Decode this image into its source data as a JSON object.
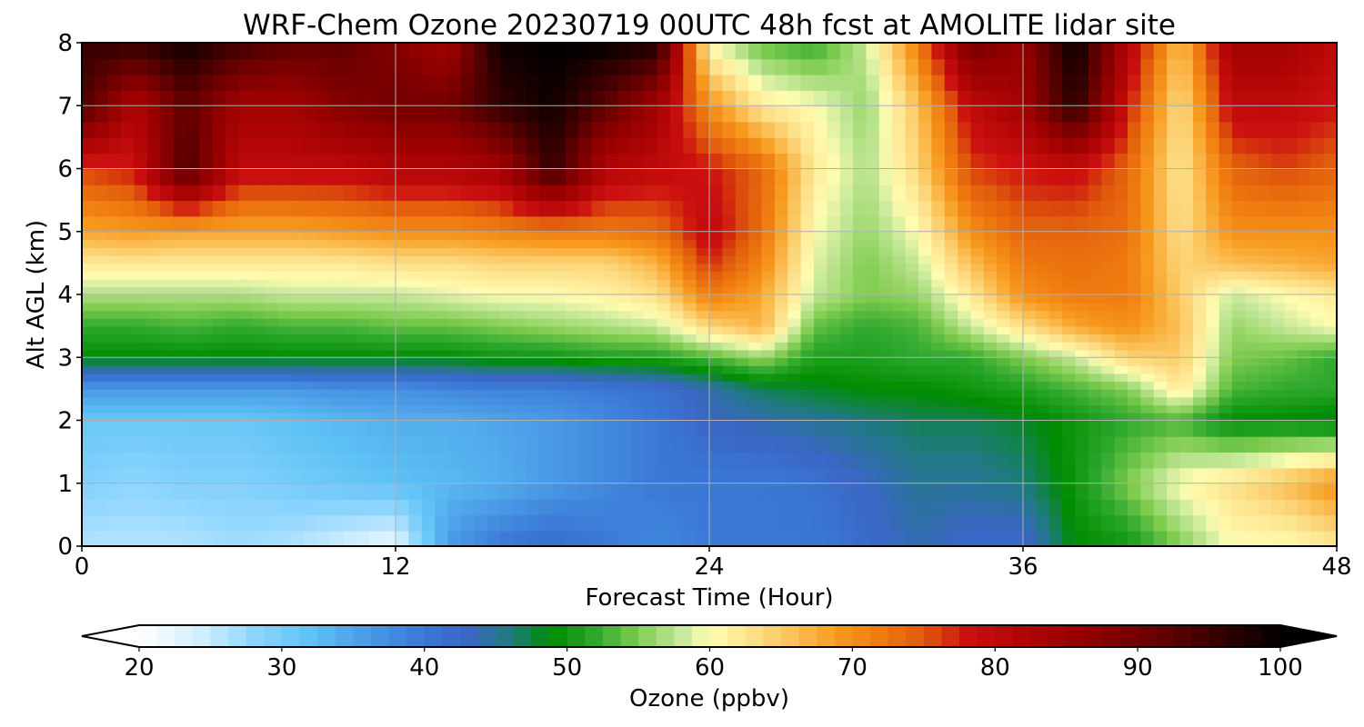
{
  "chart_data": {
    "type": "heatmap",
    "title": "WRF-Chem Ozone  20230719 00UTC 48h fcst at AMOLITE lidar site",
    "xlabel": "Forecast Time (Hour)",
    "ylabel": "Alt AGL (km)",
    "xlim": [
      0,
      48
    ],
    "ylim": [
      0,
      8
    ],
    "x_ticks": [
      0,
      12,
      24,
      36,
      48
    ],
    "y_ticks": [
      0,
      1,
      2,
      3,
      4,
      5,
      6,
      7,
      8
    ],
    "grid": true,
    "colorbar": {
      "label": "Ozone  (ppbv)",
      "min": 20,
      "max": 100,
      "ticks": [
        20,
        30,
        40,
        50,
        60,
        70,
        80,
        90,
        100
      ],
      "extend": "both",
      "colors": [
        {
          "v": 20,
          "c": "#ffffff"
        },
        {
          "v": 24,
          "c": "#d6f0ff"
        },
        {
          "v": 28,
          "c": "#8fd6ff"
        },
        {
          "v": 32,
          "c": "#5ec2f5"
        },
        {
          "v": 36,
          "c": "#4a9ae6"
        },
        {
          "v": 40,
          "c": "#3a78d6"
        },
        {
          "v": 43,
          "c": "#3a66c4"
        },
        {
          "v": 46,
          "c": "#1f7a80"
        },
        {
          "v": 49,
          "c": "#008c00"
        },
        {
          "v": 52,
          "c": "#2ea82e"
        },
        {
          "v": 55,
          "c": "#7fcc4f"
        },
        {
          "v": 58,
          "c": "#c6e89a"
        },
        {
          "v": 60,
          "c": "#fffcb0"
        },
        {
          "v": 63,
          "c": "#fde08a"
        },
        {
          "v": 66,
          "c": "#fbbf55"
        },
        {
          "v": 69,
          "c": "#f79a1e"
        },
        {
          "v": 72,
          "c": "#ef7a10"
        },
        {
          "v": 75,
          "c": "#e05a0c"
        },
        {
          "v": 78,
          "c": "#cc1010"
        },
        {
          "v": 82,
          "c": "#b00505"
        },
        {
          "v": 86,
          "c": "#960000"
        },
        {
          "v": 90,
          "c": "#740000"
        },
        {
          "v": 94,
          "c": "#4a0000"
        },
        {
          "v": 98,
          "c": "#1c0000"
        },
        {
          "v": 100,
          "c": "#000000"
        }
      ]
    },
    "times": [
      0,
      2,
      4,
      6,
      8,
      10,
      12,
      14,
      16,
      18,
      20,
      22,
      24,
      26,
      28,
      30,
      32,
      34,
      36,
      38,
      40,
      42,
      44,
      46,
      48
    ],
    "altitudes": [
      0,
      1,
      2,
      2.5,
      3,
      3.5,
      4,
      4.5,
      5,
      6,
      7,
      8
    ],
    "ozone": [
      [
        26,
        26,
        26,
        27,
        26,
        24,
        22,
        36,
        40,
        42,
        40,
        38,
        40,
        40,
        40,
        42,
        44,
        42,
        42,
        49,
        50,
        55,
        60,
        60,
        62
      ],
      [
        29,
        28,
        29,
        29,
        30,
        31,
        32,
        33,
        34,
        36,
        38,
        40,
        40,
        40,
        41,
        43,
        45,
        45,
        46,
        50,
        55,
        60,
        63,
        66,
        70
      ],
      [
        31,
        31,
        31,
        31,
        32,
        33,
        34,
        34,
        35,
        36,
        38,
        40,
        43,
        44,
        45,
        46,
        47,
        47,
        48,
        50,
        52,
        53,
        49,
        49,
        48
      ],
      [
        36,
        36,
        36,
        36,
        36,
        37,
        37,
        38,
        39,
        39,
        40,
        41,
        44,
        47,
        48,
        49,
        49,
        50,
        51,
        53,
        55,
        62,
        53,
        52,
        52
      ],
      [
        49,
        49,
        49,
        49,
        49,
        49,
        49,
        49,
        50,
        50,
        51,
        51,
        53,
        56,
        51,
        51,
        52,
        52,
        55,
        58,
        64,
        65,
        55,
        54,
        52
      ],
      [
        52,
        52,
        53,
        52,
        53,
        53,
        54,
        54,
        55,
        56,
        57,
        58,
        64,
        67,
        54,
        52,
        53,
        58,
        63,
        68,
        70,
        66,
        56,
        58,
        60
      ],
      [
        57,
        57,
        57,
        57,
        58,
        58,
        58,
        59,
        60,
        60,
        61,
        63,
        72,
        68,
        58,
        55,
        56,
        62,
        70,
        72,
        72,
        65,
        58,
        60,
        62
      ],
      [
        62,
        62,
        62,
        62,
        62,
        62,
        63,
        63,
        64,
        64,
        64,
        67,
        77,
        71,
        59,
        55,
        58,
        66,
        72,
        73,
        72,
        64,
        66,
        67,
        68
      ],
      [
        68,
        69,
        68,
        68,
        68,
        69,
        70,
        70,
        71,
        72,
        72,
        73,
        80,
        73,
        60,
        56,
        60,
        70,
        74,
        74,
        73,
        63,
        70,
        70,
        70
      ],
      [
        76,
        78,
        94,
        80,
        80,
        80,
        82,
        82,
        84,
        96,
        82,
        80,
        78,
        74,
        62,
        57,
        64,
        76,
        78,
        79,
        74,
        62,
        74,
        76,
        74
      ],
      [
        94,
        82,
        92,
        84,
        84,
        88,
        90,
        90,
        96,
        99,
        92,
        84,
        70,
        62,
        60,
        56,
        66,
        80,
        84,
        97,
        78,
        63,
        80,
        80,
        78
      ],
      [
        96,
        96,
        99,
        95,
        92,
        92,
        88,
        84,
        99,
        100,
        100,
        98,
        60,
        54,
        52,
        58,
        72,
        90,
        86,
        100,
        82,
        66,
        84,
        84,
        80
      ]
    ]
  }
}
